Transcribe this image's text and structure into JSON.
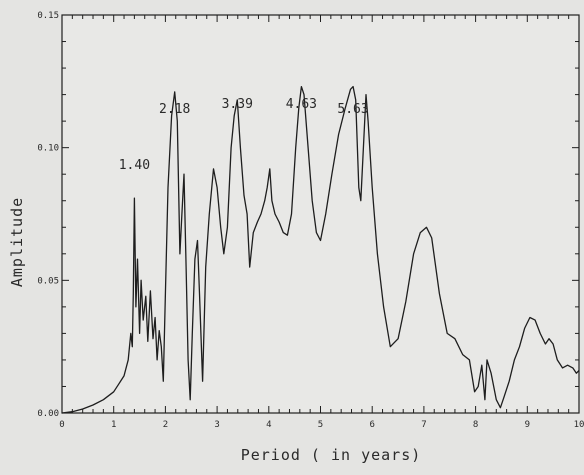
{
  "chart_data": {
    "type": "line",
    "title": "",
    "xlabel": "Period ( in years)",
    "ylabel": "Amplitude",
    "xlim": [
      0,
      10
    ],
    "ylim": [
      0,
      0.15
    ],
    "grid": false,
    "x_ticks": [
      "0",
      "1",
      "2",
      "3",
      "4",
      "5",
      "6",
      "7",
      "8",
      "9",
      "10"
    ],
    "y_ticks": [
      "0.00",
      "0.05",
      "0.10",
      "0.15"
    ],
    "annotations": [
      {
        "text": "1.40",
        "x": 1.4,
        "y": 0.092
      },
      {
        "text": "2.18",
        "x": 2.18,
        "y": 0.113
      },
      {
        "text": "3.39",
        "x": 3.39,
        "y": 0.115
      },
      {
        "text": "4.63",
        "x": 4.63,
        "y": 0.115
      },
      {
        "text": "5.63",
        "x": 5.63,
        "y": 0.113
      }
    ],
    "series": [
      {
        "points": [
          [
            0.0,
            0.0
          ],
          [
            0.2,
            0.0005
          ],
          [
            0.4,
            0.0015
          ],
          [
            0.6,
            0.003
          ],
          [
            0.8,
            0.005
          ],
          [
            1.0,
            0.008
          ],
          [
            1.1,
            0.011
          ],
          [
            1.2,
            0.014
          ],
          [
            1.28,
            0.02
          ],
          [
            1.33,
            0.03
          ],
          [
            1.36,
            0.025
          ],
          [
            1.38,
            0.045
          ],
          [
            1.4,
            0.081
          ],
          [
            1.43,
            0.04
          ],
          [
            1.46,
            0.058
          ],
          [
            1.5,
            0.03
          ],
          [
            1.53,
            0.05
          ],
          [
            1.57,
            0.035
          ],
          [
            1.62,
            0.044
          ],
          [
            1.66,
            0.027
          ],
          [
            1.71,
            0.046
          ],
          [
            1.76,
            0.028
          ],
          [
            1.8,
            0.036
          ],
          [
            1.84,
            0.02
          ],
          [
            1.88,
            0.031
          ],
          [
            1.92,
            0.025
          ],
          [
            1.96,
            0.012
          ],
          [
            2.0,
            0.045
          ],
          [
            2.05,
            0.085
          ],
          [
            2.12,
            0.112
          ],
          [
            2.18,
            0.121
          ],
          [
            2.23,
            0.11
          ],
          [
            2.28,
            0.06
          ],
          [
            2.32,
            0.075
          ],
          [
            2.36,
            0.09
          ],
          [
            2.4,
            0.055
          ],
          [
            2.44,
            0.02
          ],
          [
            2.48,
            0.005
          ],
          [
            2.52,
            0.03
          ],
          [
            2.57,
            0.058
          ],
          [
            2.62,
            0.065
          ],
          [
            2.66,
            0.045
          ],
          [
            2.72,
            0.012
          ],
          [
            2.78,
            0.055
          ],
          [
            2.85,
            0.075
          ],
          [
            2.93,
            0.092
          ],
          [
            3.0,
            0.085
          ],
          [
            3.07,
            0.07
          ],
          [
            3.13,
            0.06
          ],
          [
            3.2,
            0.07
          ],
          [
            3.27,
            0.1
          ],
          [
            3.33,
            0.112
          ],
          [
            3.39,
            0.118
          ],
          [
            3.45,
            0.1
          ],
          [
            3.52,
            0.082
          ],
          [
            3.58,
            0.075
          ],
          [
            3.63,
            0.055
          ],
          [
            3.7,
            0.068
          ],
          [
            3.78,
            0.072
          ],
          [
            3.85,
            0.075
          ],
          [
            3.92,
            0.08
          ],
          [
            3.97,
            0.085
          ],
          [
            4.02,
            0.092
          ],
          [
            4.06,
            0.08
          ],
          [
            4.12,
            0.075
          ],
          [
            4.2,
            0.072
          ],
          [
            4.28,
            0.068
          ],
          [
            4.36,
            0.067
          ],
          [
            4.44,
            0.075
          ],
          [
            4.52,
            0.1
          ],
          [
            4.58,
            0.115
          ],
          [
            4.63,
            0.123
          ],
          [
            4.68,
            0.12
          ],
          [
            4.76,
            0.1
          ],
          [
            4.84,
            0.08
          ],
          [
            4.92,
            0.068
          ],
          [
            5.0,
            0.065
          ],
          [
            5.1,
            0.075
          ],
          [
            5.22,
            0.09
          ],
          [
            5.35,
            0.105
          ],
          [
            5.48,
            0.115
          ],
          [
            5.58,
            0.122
          ],
          [
            5.63,
            0.123
          ],
          [
            5.68,
            0.118
          ],
          [
            5.74,
            0.085
          ],
          [
            5.78,
            0.08
          ],
          [
            5.83,
            0.1
          ],
          [
            5.88,
            0.12
          ],
          [
            5.92,
            0.11
          ],
          [
            6.0,
            0.085
          ],
          [
            6.1,
            0.06
          ],
          [
            6.22,
            0.04
          ],
          [
            6.35,
            0.025
          ],
          [
            6.5,
            0.028
          ],
          [
            6.65,
            0.042
          ],
          [
            6.8,
            0.06
          ],
          [
            6.93,
            0.068
          ],
          [
            7.05,
            0.07
          ],
          [
            7.15,
            0.066
          ],
          [
            7.3,
            0.045
          ],
          [
            7.45,
            0.03
          ],
          [
            7.6,
            0.028
          ],
          [
            7.75,
            0.022
          ],
          [
            7.88,
            0.02
          ],
          [
            7.98,
            0.008
          ],
          [
            8.05,
            0.01
          ],
          [
            8.12,
            0.018
          ],
          [
            8.18,
            0.005
          ],
          [
            8.22,
            0.02
          ],
          [
            8.3,
            0.015
          ],
          [
            8.4,
            0.005
          ],
          [
            8.48,
            0.002
          ],
          [
            8.55,
            0.006
          ],
          [
            8.65,
            0.012
          ],
          [
            8.75,
            0.02
          ],
          [
            8.85,
            0.025
          ],
          [
            8.95,
            0.032
          ],
          [
            9.05,
            0.036
          ],
          [
            9.15,
            0.035
          ],
          [
            9.25,
            0.03
          ],
          [
            9.35,
            0.026
          ],
          [
            9.42,
            0.028
          ],
          [
            9.5,
            0.026
          ],
          [
            9.58,
            0.02
          ],
          [
            9.68,
            0.017
          ],
          [
            9.78,
            0.018
          ],
          [
            9.88,
            0.017
          ],
          [
            9.95,
            0.015
          ],
          [
            10.0,
            0.016
          ]
        ]
      }
    ]
  }
}
